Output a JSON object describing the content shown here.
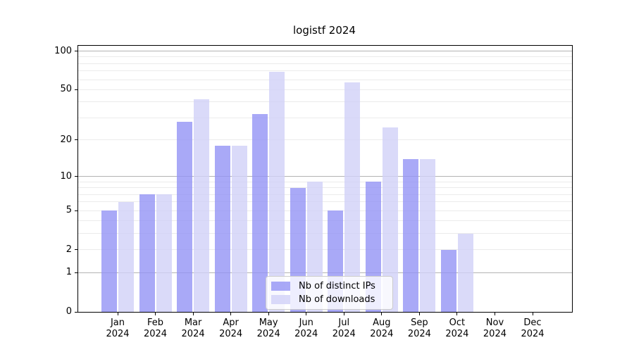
{
  "chart_data": {
    "type": "bar",
    "title": "logistf 2024",
    "x_categories": [
      "Jan",
      "Feb",
      "Mar",
      "Apr",
      "May",
      "Jun",
      "Jul",
      "Aug",
      "Sep",
      "Oct",
      "Nov",
      "Dec"
    ],
    "x_year": "2024",
    "series": [
      {
        "name": "Nb of distinct IPs",
        "color": "#9393f5",
        "values": [
          5,
          7,
          28,
          18,
          32,
          8,
          5,
          9,
          14,
          2,
          0,
          0
        ]
      },
      {
        "name": "Nb of downloads",
        "color": "#d1d1f8",
        "values": [
          6,
          7,
          42,
          18,
          69,
          9,
          57,
          25,
          14,
          3,
          0,
          0
        ]
      }
    ],
    "bar_alpha": 0.8,
    "yscale": "log1p",
    "ylim": [
      0,
      109
    ],
    "y_ticks": [
      0,
      1,
      2,
      5,
      10,
      20,
      50,
      100
    ],
    "y_major_gridlines": [
      1,
      10,
      100
    ],
    "y_minor_gridlines": [
      2,
      3,
      4,
      5,
      6,
      7,
      8,
      9,
      20,
      30,
      40,
      50,
      60,
      70,
      80,
      90
    ],
    "grid": true,
    "legend_position": "lower center"
  },
  "colors": {
    "background": "#ffffff",
    "axis": "#000000",
    "grid_major": "#b3b3b3",
    "grid_minor": "#ebebeb",
    "text": "#000000",
    "legend_border": "#cccccc"
  }
}
